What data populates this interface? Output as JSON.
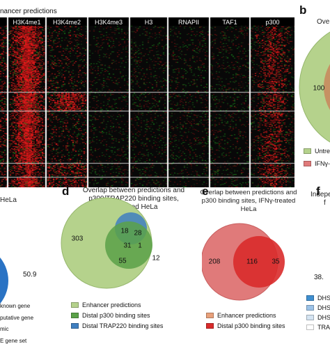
{
  "panel_a": {
    "title_fragment": "nancer predictions",
    "columns": [
      "H3K4me1",
      "H3K4me2",
      "H3K4me3",
      "H3",
      "RNAPII",
      "TAF1",
      "p300"
    ]
  },
  "panel_b": {
    "letter": "b",
    "title_fragment": "Ove",
    "number": "100",
    "legend": [
      {
        "label": "Untre",
        "color": "#b5d28c"
      },
      {
        "label": "IFNγ-",
        "color": "#e07a7a"
      }
    ]
  },
  "panel_c": {
    "title_fragment": "HeLa",
    "value": "50.9",
    "legend_fragments": [
      "known gene",
      "putative gene",
      "mic",
      "E gene set"
    ]
  },
  "panel_d": {
    "letter": "d",
    "caption": [
      "Overlap between predictions and",
      "p300/TRAP220 binding sites,",
      "untreated HeLa"
    ],
    "numbers": {
      "enhancer_only": "303",
      "blue_top": "18",
      "blue_right": "28",
      "triple": "31",
      "small": "1",
      "green_mid": "55",
      "right_edge": "12"
    },
    "legend": [
      {
        "label": "Enhancer predictions",
        "color": "#b5d28c"
      },
      {
        "label": "Distal p300 binding sites",
        "color": "#5aa148"
      },
      {
        "label": "Distal TRAP220 binding sites",
        "color": "#3f7fc0"
      }
    ]
  },
  "panel_e": {
    "letter": "e",
    "caption": [
      "Overlap between predictions and",
      "p300 binding sites, IFNγ-treated HeLa"
    ],
    "numbers": {
      "left": "208",
      "overlap": "116",
      "right": "35"
    },
    "legend": [
      {
        "label": "Enhancer predictions",
        "color": "#e8a07a"
      },
      {
        "label": "Distal p300 binding sites",
        "color": "#d92b2b"
      }
    ]
  },
  "panel_f": {
    "letter": "f",
    "title_fragment": "Indepe",
    "title_fragment2": "f",
    "value": "38.",
    "legend": [
      {
        "label": "DHS",
        "color": "#3f8fd0"
      },
      {
        "label": "DHS",
        "color": "#9cc3e8"
      },
      {
        "label": "DHS",
        "color": "#d5e4f2"
      },
      {
        "label": "TRAF",
        "color": "#ffffff"
      }
    ]
  }
}
